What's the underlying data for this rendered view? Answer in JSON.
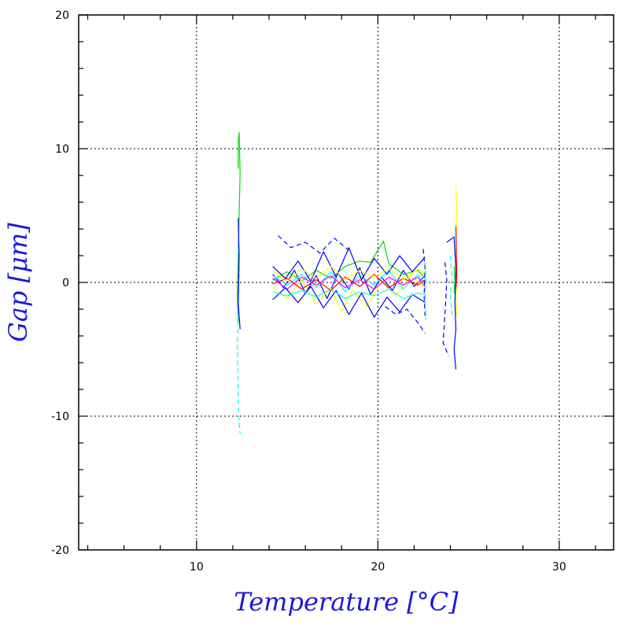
{
  "chart_data": {
    "type": "line",
    "title": "",
    "xlabel": "Temperature [°C]",
    "ylabel": "Gap [μm]",
    "xlim": [
      3.5,
      33
    ],
    "ylim": [
      -20,
      20
    ],
    "x_ticks": [
      10,
      20,
      30
    ],
    "y_ticks": [
      20,
      10,
      0,
      -10,
      -20
    ],
    "x_tick_labels": [
      "10",
      "20",
      "30"
    ],
    "y_tick_labels": [
      "20",
      "10",
      "0",
      "-10",
      "-20"
    ],
    "x_minor_step": 2,
    "y_minor_step": 2,
    "grid": true,
    "grid_style": "dotted",
    "legend": "none",
    "series_colors": [
      "#0000ff",
      "#00dd00",
      "#ffff00",
      "#00ffff",
      "#ff0000",
      "#ff00ff",
      "#000088",
      "#008800"
    ],
    "series": [
      {
        "color": "#00dd00",
        "style": "solid",
        "points": [
          [
            12.3,
            8.5
          ],
          [
            12.3,
            10.5
          ],
          [
            12.35,
            11.2
          ],
          [
            12.4,
            8.2
          ],
          [
            12.3,
            2.0
          ],
          [
            12.25,
            -1.0
          ],
          [
            12.3,
            -3.0
          ]
        ]
      },
      {
        "color": "#00ffff",
        "style": "dashed",
        "points": [
          [
            12.3,
            3.0
          ],
          [
            12.35,
            1.0
          ],
          [
            12.3,
            -2.0
          ],
          [
            12.25,
            -5.0
          ],
          [
            12.3,
            -8.5
          ],
          [
            12.35,
            -10.5
          ],
          [
            12.4,
            -11.3
          ]
        ]
      },
      {
        "color": "#0000ff",
        "style": "solid",
        "points": [
          [
            12.3,
            4.8
          ],
          [
            12.35,
            2.0
          ],
          [
            12.3,
            -1.5
          ],
          [
            12.4,
            -3.5
          ]
        ]
      },
      {
        "color": "#0000ff",
        "style": "solid",
        "points": [
          [
            14.2,
            0.6
          ],
          [
            14.8,
            -0.4
          ],
          [
            15.4,
            0.9
          ],
          [
            16.0,
            -0.8
          ],
          [
            16.6,
            0.5
          ],
          [
            17.2,
            -1.2
          ],
          [
            17.8,
            0.7
          ],
          [
            18.4,
            -0.5
          ],
          [
            19.0,
            1.1
          ],
          [
            19.6,
            -0.9
          ],
          [
            20.2,
            0.4
          ],
          [
            20.8,
            -0.6
          ],
          [
            21.4,
            0.9
          ],
          [
            22.0,
            -0.3
          ],
          [
            22.6,
            0.5
          ]
        ]
      },
      {
        "color": "#00dd00",
        "style": "solid",
        "points": [
          [
            14.2,
            0.2
          ],
          [
            15.0,
            0.8
          ],
          [
            15.8,
            0.1
          ],
          [
            16.6,
            0.9
          ],
          [
            17.4,
            0.3
          ],
          [
            18.2,
            1.2
          ],
          [
            19.0,
            1.6
          ],
          [
            19.6,
            1.5
          ],
          [
            20.0,
            2.4
          ],
          [
            20.3,
            3.1
          ],
          [
            20.6,
            1.4
          ],
          [
            21.4,
            0.6
          ],
          [
            22.2,
            0.9
          ],
          [
            22.6,
            0.3
          ]
        ]
      },
      {
        "color": "#ffff00",
        "style": "solid",
        "points": [
          [
            14.2,
            -0.3
          ],
          [
            15.0,
            -1.2
          ],
          [
            15.8,
            0.2
          ],
          [
            16.6,
            -1.6
          ],
          [
            17.4,
            -0.4
          ],
          [
            18.0,
            -2.2
          ],
          [
            18.6,
            -0.6
          ],
          [
            19.4,
            -1.8
          ],
          [
            20.2,
            0.1
          ],
          [
            21.0,
            -1.0
          ],
          [
            21.8,
            0.5
          ],
          [
            22.6,
            -0.4
          ]
        ]
      },
      {
        "color": "#00ffff",
        "style": "solid",
        "points": [
          [
            14.2,
            0.5
          ],
          [
            15.0,
            -0.2
          ],
          [
            15.8,
            0.6
          ],
          [
            16.6,
            -0.4
          ],
          [
            17.4,
            0.8
          ],
          [
            18.2,
            -0.7
          ],
          [
            19.0,
            0.5
          ],
          [
            19.8,
            -0.2
          ],
          [
            20.6,
            0.9
          ],
          [
            21.4,
            -0.5
          ],
          [
            22.2,
            0.6
          ],
          [
            22.6,
            -0.1
          ]
        ]
      },
      {
        "color": "#ff0000",
        "style": "solid",
        "points": [
          [
            14.2,
            -0.1
          ],
          [
            15.0,
            0.3
          ],
          [
            15.8,
            -0.5
          ],
          [
            16.6,
            0.2
          ],
          [
            17.4,
            -0.6
          ],
          [
            18.2,
            0.4
          ],
          [
            19.0,
            -0.3
          ],
          [
            19.8,
            0.6
          ],
          [
            20.6,
            -0.4
          ],
          [
            21.4,
            0.3
          ],
          [
            22.2,
            -0.2
          ],
          [
            22.6,
            0.2
          ]
        ]
      },
      {
        "color": "#ff00ff",
        "style": "solid",
        "points": [
          [
            14.2,
            0.3
          ],
          [
            15.0,
            -0.5
          ],
          [
            15.8,
            0.4
          ],
          [
            16.6,
            -0.2
          ],
          [
            17.4,
            0.5
          ],
          [
            18.2,
            -0.4
          ],
          [
            19.0,
            0.2
          ],
          [
            19.8,
            -0.5
          ],
          [
            20.6,
            0.4
          ],
          [
            21.4,
            -0.2
          ],
          [
            22.2,
            0.4
          ],
          [
            22.6,
            -0.3
          ]
        ]
      },
      {
        "color": "#0000ff",
        "style": "solid",
        "points": [
          [
            14.2,
            1.2
          ],
          [
            14.9,
            0.3
          ],
          [
            15.6,
            1.6
          ],
          [
            16.3,
            0.1
          ],
          [
            17.0,
            2.3
          ],
          [
            17.7,
            0.4
          ],
          [
            18.4,
            2.6
          ],
          [
            19.1,
            0.2
          ],
          [
            19.8,
            1.8
          ],
          [
            20.5,
            0.6
          ],
          [
            21.2,
            2.0
          ],
          [
            21.9,
            0.8
          ],
          [
            22.6,
            1.9
          ]
        ]
      },
      {
        "color": "#0000ff",
        "style": "solid",
        "points": [
          [
            14.2,
            -1.3
          ],
          [
            14.9,
            -0.4
          ],
          [
            15.6,
            -1.5
          ],
          [
            16.3,
            -0.3
          ],
          [
            17.0,
            -1.9
          ],
          [
            17.7,
            -0.6
          ],
          [
            18.4,
            -2.4
          ],
          [
            19.1,
            -0.8
          ],
          [
            19.8,
            -2.6
          ],
          [
            20.5,
            -1.1
          ],
          [
            21.2,
            -2.2
          ],
          [
            21.9,
            -0.9
          ],
          [
            22.6,
            -1.5
          ]
        ]
      },
      {
        "color": "#ffff00",
        "style": "solid",
        "points": [
          [
            14.2,
            0.9
          ],
          [
            15.0,
            0.1
          ],
          [
            15.8,
            1.0
          ],
          [
            16.6,
            0.3
          ],
          [
            17.4,
            1.2
          ],
          [
            18.2,
            0.2
          ],
          [
            19.0,
            0.9
          ],
          [
            19.8,
            0.4
          ],
          [
            20.6,
            1.1
          ],
          [
            21.4,
            0.2
          ],
          [
            22.2,
            1.0
          ],
          [
            22.6,
            0.6
          ]
        ]
      },
      {
        "color": "#00ffff",
        "style": "solid",
        "points": [
          [
            14.2,
            -0.7
          ],
          [
            15.0,
            -1.0
          ],
          [
            15.8,
            -0.6
          ],
          [
            16.6,
            -1.1
          ],
          [
            17.4,
            -0.5
          ],
          [
            18.2,
            -1.2
          ],
          [
            19.0,
            -0.7
          ],
          [
            19.8,
            -1.0
          ],
          [
            20.6,
            -0.5
          ],
          [
            21.4,
            -1.2
          ],
          [
            22.2,
            -0.8
          ],
          [
            22.6,
            -0.9
          ]
        ]
      },
      {
        "color": "#0000ff",
        "style": "dashed",
        "points": [
          [
            14.5,
            3.5
          ],
          [
            15.2,
            2.6
          ],
          [
            16.0,
            3.0
          ],
          [
            16.8,
            2.2
          ],
          [
            17.6,
            3.3
          ],
          [
            18.4,
            2.4
          ]
        ]
      },
      {
        "color": "#0000ff",
        "style": "dashed",
        "points": [
          [
            20.4,
            -1.8
          ],
          [
            21.0,
            -2.4
          ],
          [
            21.6,
            -2.0
          ],
          [
            22.2,
            -3.0
          ],
          [
            22.6,
            -3.8
          ]
        ]
      },
      {
        "color": "#0000ff",
        "style": "dashed",
        "points": [
          [
            22.5,
            2.5
          ],
          [
            22.6,
            1.0
          ],
          [
            22.55,
            -1.0
          ],
          [
            22.6,
            -2.5
          ]
        ]
      },
      {
        "color": "#00ffff",
        "style": "dashed",
        "points": [
          [
            22.6,
            1.5
          ],
          [
            22.65,
            0.2
          ],
          [
            22.6,
            -1.2
          ],
          [
            22.65,
            -2.8
          ]
        ]
      },
      {
        "color": "#ffff00",
        "style": "solid",
        "points": [
          [
            24.3,
            7.2
          ],
          [
            24.35,
            5.5
          ],
          [
            24.3,
            3.0
          ],
          [
            24.35,
            1.0
          ],
          [
            24.3,
            -1.0
          ],
          [
            24.35,
            -2.5
          ]
        ]
      },
      {
        "color": "#0000ff",
        "style": "solid",
        "points": [
          [
            23.8,
            3.0
          ],
          [
            24.2,
            3.4
          ],
          [
            24.3,
            1.0
          ],
          [
            24.25,
            -1.5
          ],
          [
            24.3,
            -3.5
          ],
          [
            24.2,
            -5.0
          ],
          [
            24.3,
            -6.5
          ]
        ]
      },
      {
        "color": "#0000ff",
        "style": "dashed",
        "points": [
          [
            23.7,
            1.5
          ],
          [
            23.8,
            0.2
          ],
          [
            23.75,
            -1.2
          ],
          [
            23.6,
            -4.5
          ],
          [
            23.9,
            -5.5
          ]
        ]
      },
      {
        "color": "#00ffff",
        "style": "dashed",
        "points": [
          [
            24.0,
            2.0
          ],
          [
            24.1,
            0.4
          ],
          [
            24.0,
            -1.0
          ],
          [
            24.1,
            -2.6
          ]
        ]
      },
      {
        "color": "#00dd00",
        "style": "solid",
        "points": [
          [
            24.2,
            1.2
          ],
          [
            24.25,
            0.1
          ],
          [
            24.2,
            -0.8
          ]
        ]
      },
      {
        "color": "#ff0000",
        "style": "solid",
        "points": [
          [
            24.3,
            4.2
          ],
          [
            24.35,
            0.5
          ],
          [
            24.3,
            -0.5
          ]
        ]
      }
    ]
  }
}
